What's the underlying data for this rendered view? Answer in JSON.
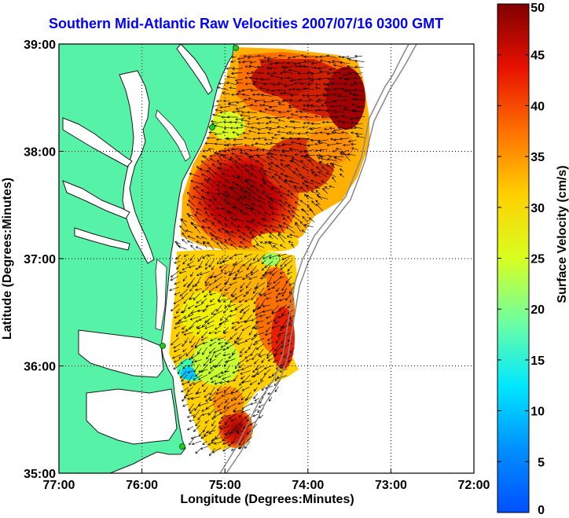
{
  "title": "Southern Mid-Atlantic Raw Velocities 2007/07/16 0300 GMT",
  "x_axis": {
    "label": "Longitude (Degrees:Minutes)",
    "ticks": [
      "77:00",
      "76:00",
      "75:00",
      "74:00",
      "73:00",
      "72:00"
    ]
  },
  "y_axis": {
    "label": "Latitude (Degrees:Minutes)",
    "ticks": [
      "39:00",
      "38:00",
      "37:00",
      "36:00",
      "35:00"
    ]
  },
  "colorbar": {
    "label": "Surface Velocity (cm/s)",
    "ticks": [
      "50",
      "45",
      "40",
      "35",
      "30",
      "25",
      "20",
      "15",
      "10",
      "5",
      "0"
    ],
    "min": 0,
    "max": 50
  },
  "colors": {
    "land": "#55f2a8",
    "title": "#0000ff",
    "coast": "#1a1a1a",
    "bathymetry": "#888888",
    "stations": "#22cc22"
  },
  "map_extent": {
    "lon": [
      -77,
      -72
    ],
    "lat": [
      35,
      39
    ]
  },
  "grid": true
}
